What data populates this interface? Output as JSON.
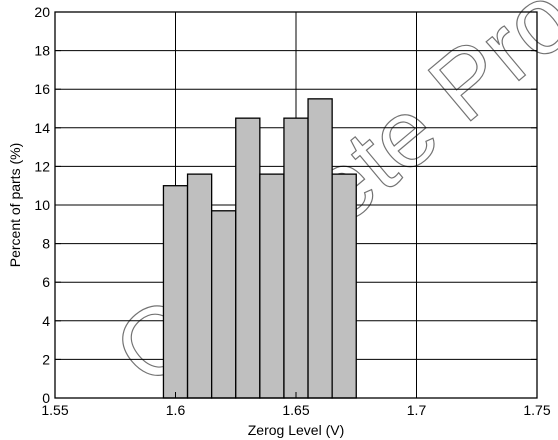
{
  "chart_data": {
    "type": "bar",
    "subtype": "histogram",
    "title": "",
    "xlabel": "Zerog Level (V)",
    "ylabel": "Percent of parts (%)",
    "xlim": [
      1.55,
      1.75
    ],
    "ylim": [
      0,
      20
    ],
    "xticks": [
      "1.55",
      "1.6",
      "1.65",
      "1.7",
      "1.75"
    ],
    "yticks": [
      "0",
      "2",
      "4",
      "6",
      "8",
      "10",
      "12",
      "14",
      "16",
      "18",
      "20"
    ],
    "grid": true,
    "bin_width": 0.01,
    "bins": [
      {
        "x0": 1.595,
        "x1": 1.605,
        "value": 11.0
      },
      {
        "x0": 1.605,
        "x1": 1.615,
        "value": 11.6
      },
      {
        "x0": 1.615,
        "x1": 1.625,
        "value": 9.7
      },
      {
        "x0": 1.625,
        "x1": 1.635,
        "value": 14.5
      },
      {
        "x0": 1.635,
        "x1": 1.645,
        "value": 11.6
      },
      {
        "x0": 1.645,
        "x1": 1.655,
        "value": 14.5
      },
      {
        "x0": 1.655,
        "x1": 1.665,
        "value": 15.5
      },
      {
        "x0": 1.665,
        "x1": 1.675,
        "value": 11.6
      }
    ],
    "bar_color": "#bfbfbf",
    "edge_color": "#000000"
  },
  "watermark": {
    "text": "Obsolete Product(s)",
    "color": "#000000"
  }
}
